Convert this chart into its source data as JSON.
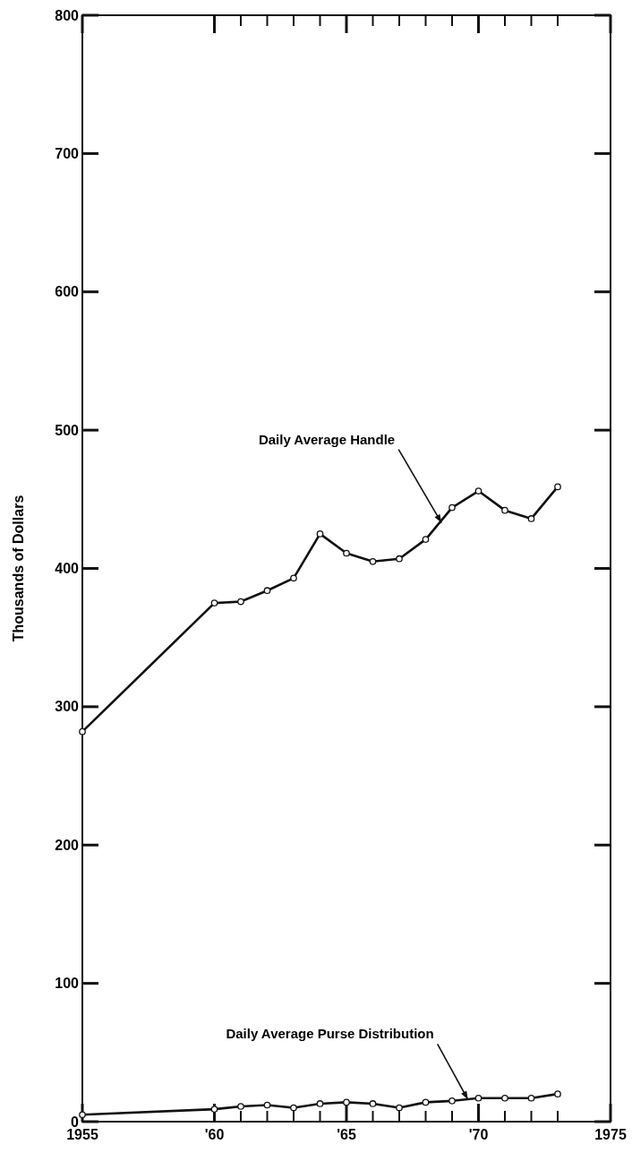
{
  "chart_data": {
    "type": "line",
    "ylabel": "Thousands of Dollars",
    "x": [
      1955,
      1960,
      1961,
      1962,
      1963,
      1964,
      1965,
      1966,
      1967,
      1968,
      1969,
      1970,
      1971,
      1972,
      1973
    ],
    "series": [
      {
        "color": "#111111",
        "values": [
          282,
          375,
          376,
          384,
          393,
          425,
          411,
          405,
          407,
          421,
          444,
          456,
          442,
          436,
          459
        ]
      },
      {
        "color": "#111111",
        "values": [
          5,
          9,
          11,
          12,
          10,
          13,
          14,
          13,
          10,
          14,
          15,
          17,
          17,
          17,
          20
        ]
      }
    ],
    "xlim": [
      1955,
      1975
    ],
    "xticks": [
      {
        "value": 1955,
        "label": "1955"
      },
      {
        "value": 1960,
        "label": "'60"
      },
      {
        "value": 1961,
        "label": null
      },
      {
        "value": 1962,
        "label": null
      },
      {
        "value": 1963,
        "label": null
      },
      {
        "value": 1964,
        "label": null
      },
      {
        "value": 1965,
        "label": "'65"
      },
      {
        "value": 1966,
        "label": null
      },
      {
        "value": 1967,
        "label": null
      },
      {
        "value": 1968,
        "label": null
      },
      {
        "value": 1969,
        "label": null
      },
      {
        "value": 1970,
        "label": "'70"
      },
      {
        "value": 1971,
        "label": null
      },
      {
        "value": 1972,
        "label": null
      },
      {
        "value": 1973,
        "label": null
      },
      {
        "value": 1975,
        "label": "1975"
      }
    ],
    "ylim": [
      0,
      800
    ],
    "yticks": [
      0,
      100,
      200,
      300,
      400,
      500,
      600,
      700,
      800
    ],
    "grid": false,
    "marker": "circle",
    "line_style": "solid",
    "annotations": [
      {
        "text": "Daily Average Handle",
        "x": 1968.6,
        "y": 433
      },
      {
        "text": "Daily Average Purse Distribution",
        "x": 1969.6,
        "y": 16
      }
    ]
  }
}
